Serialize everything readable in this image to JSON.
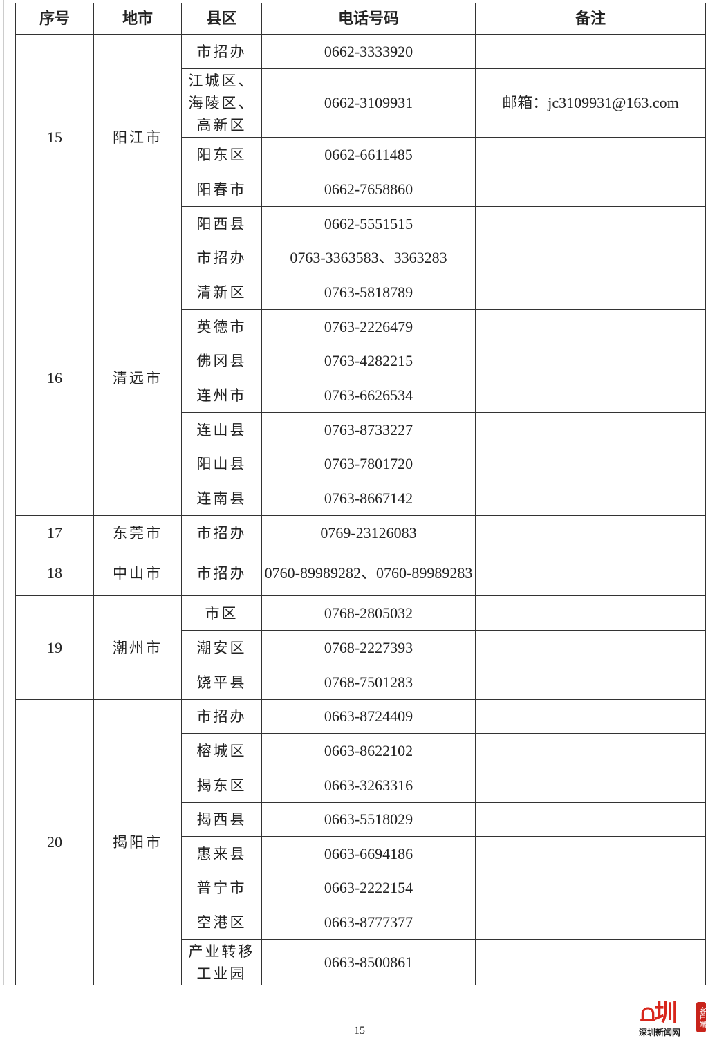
{
  "table": {
    "headers": [
      "序号",
      "地市",
      "县区",
      "电话号码",
      "备注"
    ],
    "groups": [
      {
        "no": "15",
        "city": "阳江市",
        "rows": [
          {
            "district": "市招办",
            "phone": "0662-3333920",
            "note": ""
          },
          {
            "district": "江城区、海陵区、高新区",
            "phone": "0662-3109931",
            "note": "邮箱：jc3109931@163.com"
          },
          {
            "district": "阳东区",
            "phone": "0662-6611485",
            "note": ""
          },
          {
            "district": "阳春市",
            "phone": "0662-7658860",
            "note": ""
          },
          {
            "district": "阳西县",
            "phone": "0662-5551515",
            "note": ""
          }
        ]
      },
      {
        "no": "16",
        "city": "清远市",
        "rows": [
          {
            "district": "市招办",
            "phone": "0763-3363583、3363283",
            "note": ""
          },
          {
            "district": "清新区",
            "phone": "0763-5818789",
            "note": ""
          },
          {
            "district": "英德市",
            "phone": "0763-2226479",
            "note": ""
          },
          {
            "district": "佛冈县",
            "phone": "0763-4282215",
            "note": ""
          },
          {
            "district": "连州市",
            "phone": "0763-6626534",
            "note": ""
          },
          {
            "district": "连山县",
            "phone": "0763-8733227",
            "note": ""
          },
          {
            "district": "阳山县",
            "phone": "0763-7801720",
            "note": ""
          },
          {
            "district": "连南县",
            "phone": "0763-8667142",
            "note": ""
          }
        ]
      },
      {
        "no": "17",
        "city": "东莞市",
        "rows": [
          {
            "district": "市招办",
            "phone": "0769-23126083",
            "note": ""
          }
        ]
      },
      {
        "no": "18",
        "city": "中山市",
        "rows": [
          {
            "district": "市招办",
            "phone": "0760-89989282、0760-89989283",
            "note": ""
          }
        ]
      },
      {
        "no": "19",
        "city": "潮州市",
        "rows": [
          {
            "district": "市区",
            "phone": "0768-2805032",
            "note": ""
          },
          {
            "district": "潮安区",
            "phone": "0768-2227393",
            "note": ""
          },
          {
            "district": "饶平县",
            "phone": "0768-7501283",
            "note": ""
          }
        ]
      },
      {
        "no": "20",
        "city": "揭阳市",
        "rows": [
          {
            "district": "市招办",
            "phone": "0663-8724409",
            "note": ""
          },
          {
            "district": "榕城区",
            "phone": "0663-8622102",
            "note": ""
          },
          {
            "district": "揭东区",
            "phone": "0663-3263316",
            "note": ""
          },
          {
            "district": "揭西县",
            "phone": "0663-5518029",
            "note": ""
          },
          {
            "district": "惠来县",
            "phone": "0663-6694186",
            "note": ""
          },
          {
            "district": "普宁市",
            "phone": "0663-2222154",
            "note": ""
          },
          {
            "district": "空港区",
            "phone": "0663-8777377",
            "note": ""
          },
          {
            "district": "产业转移工业园",
            "phone": "0663-8500861",
            "note": ""
          }
        ]
      }
    ]
  },
  "page_number": "15",
  "logo": {
    "mark": "深圳",
    "name": "深圳新闻网",
    "tag": "客户端"
  }
}
